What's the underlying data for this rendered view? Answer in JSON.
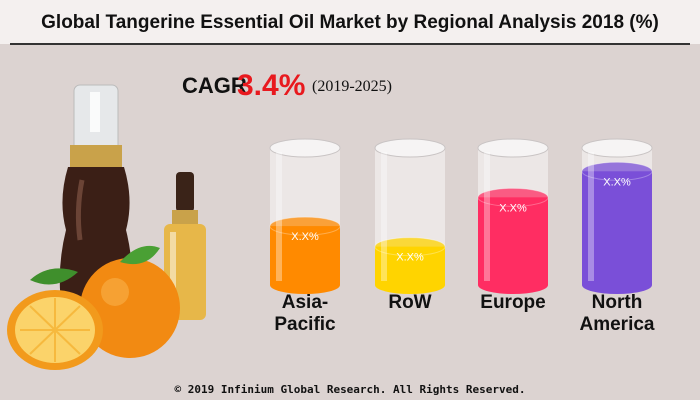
{
  "chart_data": {
    "type": "cylinder",
    "title": "Global Tangerine Essential Oil Market by Regional Analysis 2018 (%)",
    "annotations": [
      "CAGR",
      "3.4%",
      "(2019-2025)"
    ],
    "categories": [
      "Asia-Pacific",
      "RoW",
      "Europe",
      "North America"
    ],
    "values": [
      43,
      28,
      64,
      83
    ],
    "value_labels": [
      "X.X%",
      "X.X%",
      "X.X%",
      "X.X%"
    ],
    "colors": [
      "#ff8a00",
      "#ffd400",
      "#ff2d62",
      "#7a4fd8"
    ],
    "ylim": [
      0,
      100
    ],
    "footer": "© 2019 Infinium Global Research. All Rights Reserved."
  }
}
